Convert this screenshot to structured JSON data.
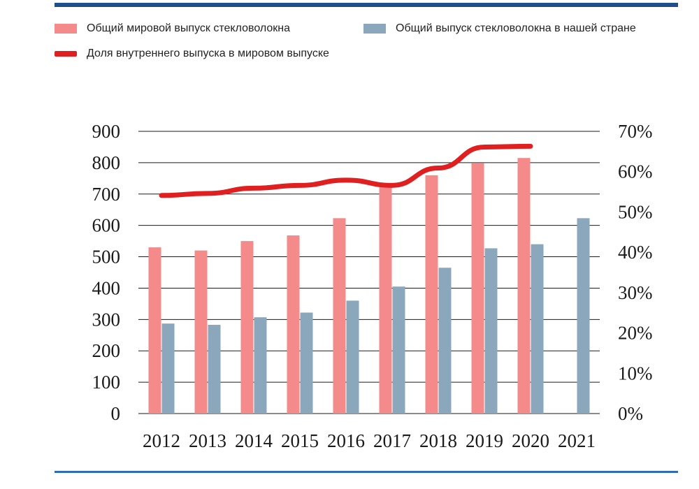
{
  "chart_data": {
    "type": "bar",
    "categories": [
      "2012",
      "2013",
      "2014",
      "2015",
      "2016",
      "2017",
      "2018",
      "2019",
      "2020",
      "2021"
    ],
    "series": [
      {
        "name": "Общий мировой выпуск стекловолокна",
        "kind": "bar",
        "axis": "left",
        "color": "#f48a8a",
        "values": [
          530,
          520,
          550,
          568,
          623,
          725,
          760,
          798,
          815,
          null
        ]
      },
      {
        "name": "Общий выпуск стекловолокна в нашей стране",
        "kind": "bar",
        "axis": "left",
        "color": "#8aa7bc",
        "values": [
          287,
          283,
          307,
          322,
          360,
          405,
          465,
          527,
          540,
          623
        ]
      },
      {
        "name": "Доля внутреннего выпуска в мировом выпуске",
        "kind": "line",
        "axis": "right",
        "color": "#e02020",
        "values": [
          54.1,
          54.6,
          55.9,
          56.6,
          57.9,
          56.6,
          60.9,
          66.1,
          66.3,
          null
        ]
      }
    ],
    "y_left": {
      "min": 0,
      "max": 900,
      "ticks": [
        "0",
        "100",
        "200",
        "300",
        "400",
        "500",
        "600",
        "700",
        "800",
        "900"
      ]
    },
    "y_right": {
      "min": 0,
      "max": 70,
      "ticks": [
        "0%",
        "10%",
        "20%",
        "30%",
        "40%",
        "50%",
        "60%",
        "70%"
      ]
    },
    "grid": true,
    "legend_position": "top"
  }
}
